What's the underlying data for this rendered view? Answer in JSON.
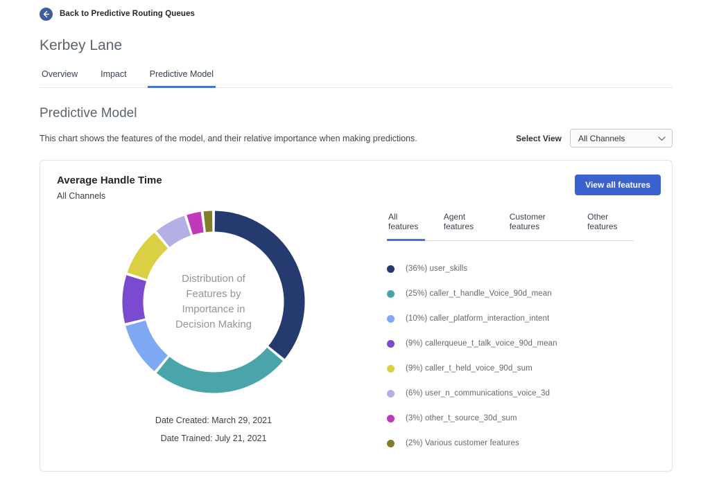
{
  "page": {
    "back_label": "Back to Predictive Routing Queues",
    "title": "Kerbey Lane",
    "tabs": [
      {
        "label": "Overview"
      },
      {
        "label": "Impact"
      },
      {
        "label": "Predictive Model"
      }
    ],
    "active_tab": "Predictive Model"
  },
  "section": {
    "heading": "Predictive Model",
    "description": "This chart shows the features of the model, and their relative importance when making predictions.",
    "select_view_label": "Select View",
    "select_view_value": "All Channels"
  },
  "card": {
    "title": "Average Handle Time",
    "subtitle": "All Channels",
    "view_all_button": "View all features",
    "feature_tabs": [
      {
        "label": "All features"
      },
      {
        "label": "Agent features"
      },
      {
        "label": "Customer features"
      },
      {
        "label": "Other features"
      }
    ],
    "active_feature_tab": "All features",
    "date_created": "Date Created: March 29, 2021",
    "date_trained": "Date Trained: July 21, 2021"
  },
  "chart_data": {
    "type": "pie",
    "title": "Distribution of Features by Importance in Decision Making",
    "center_label_lines": [
      "Distribution of",
      "Features by",
      "Importance in",
      "Decision Making"
    ],
    "legend_position": "right",
    "donut": true,
    "slices": [
      {
        "label": "user_skills",
        "pct": 36,
        "color": "#253a6e",
        "legend_text": "(36%) user_skills"
      },
      {
        "label": "caller_t_handle_Voice_90d_mean",
        "pct": 25,
        "color": "#4aa5ab",
        "legend_text": "(25%) caller_t_handle_Voice_90d_mean"
      },
      {
        "label": "caller_platform_interaction_intent",
        "pct": 10,
        "color": "#7fa9f2",
        "legend_text": "(10%) caller_platform_interaction_intent"
      },
      {
        "label": "callerqueue_t_talk_voice_90d_mean",
        "pct": 9,
        "color": "#7a4bce",
        "legend_text": "(9%) callerqueue_t_talk_voice_90d_mean"
      },
      {
        "label": "caller_t_held_voice_90d_sum",
        "pct": 9,
        "color": "#d9d043",
        "legend_text": "(9%) caller_t_held_voice_90d_sum"
      },
      {
        "label": "user_n_communications_voice_3d",
        "pct": 6,
        "color": "#b3b0e6",
        "legend_text": "(6%) user_n_communications_voice_3d"
      },
      {
        "label": "other_t_source_30d_sum",
        "pct": 3,
        "color": "#bf39ba",
        "legend_text": "(3%) other_t_source_30d_sum"
      },
      {
        "label": "Various customer features",
        "pct": 2,
        "color": "#817e2b",
        "legend_text": "(2%) Various customer features"
      }
    ]
  },
  "colors": {
    "accent_tab_underline": "#4472dc",
    "primary_button": "#3b62cd",
    "back_circle": "#3e5b9a"
  }
}
